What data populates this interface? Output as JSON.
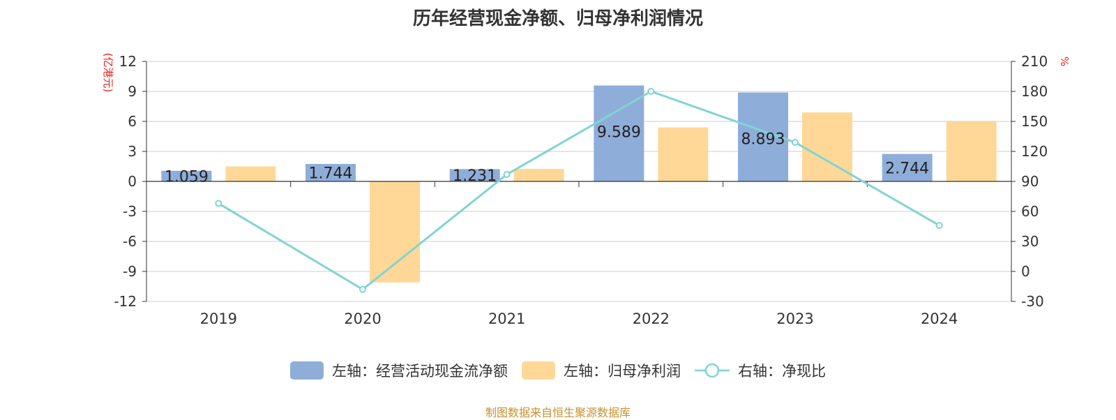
{
  "title": "历年经营现金净额、归母净利润情况",
  "source": "制图数据来自恒生聚源数据库",
  "colors": {
    "bar1": "#8fadd9",
    "bar2": "#ffd897",
    "line": "#80d4d4",
    "unit": "#e8201f",
    "axis": "#333333",
    "grid": "#cccccc"
  },
  "chart_data": {
    "type": "bar",
    "categories": [
      "2019",
      "2020",
      "2021",
      "2022",
      "2023",
      "2024"
    ],
    "left_axis": {
      "unit": "(亿港元)",
      "ylim": [
        -12,
        12
      ],
      "ticks": [
        "12",
        "9",
        "6",
        "3",
        "0",
        "-3",
        "-6",
        "-9",
        "-12"
      ]
    },
    "right_axis": {
      "unit": "%",
      "ylim": [
        -30,
        210
      ],
      "ticks": [
        "210",
        "180",
        "150",
        "120",
        "90",
        "60",
        "30",
        "0",
        "-30"
      ]
    },
    "series": [
      {
        "name": "左轴：经营活动现金流净额",
        "type": "bar",
        "axis": "left",
        "values": [
          1.059,
          1.744,
          1.231,
          9.589,
          8.893,
          2.744
        ],
        "labels": [
          "1.059",
          "1.744",
          "1.231",
          "9.589",
          "8.893",
          "2.744"
        ]
      },
      {
        "name": "左轴：归母净利润",
        "type": "bar",
        "axis": "left",
        "values": [
          1.5,
          -10.1,
          1.25,
          5.4,
          6.9,
          6.0
        ]
      },
      {
        "name": "右轴：净现比",
        "type": "line",
        "axis": "right",
        "values": [
          68,
          -18,
          97,
          180,
          129,
          46
        ]
      }
    ],
    "grid": true,
    "legend_position": "bottom"
  }
}
